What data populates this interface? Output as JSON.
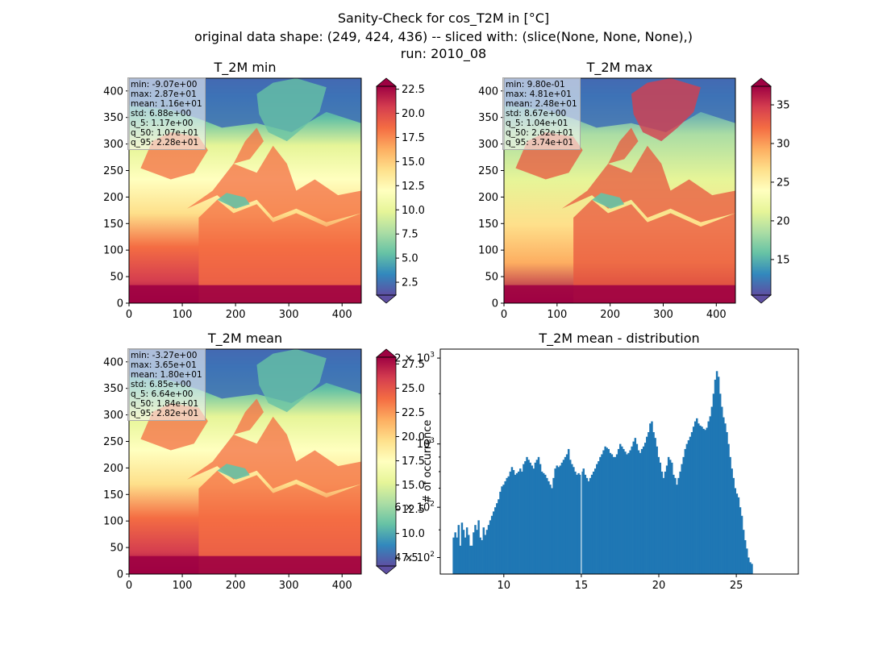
{
  "suptitle": {
    "line1": "Sanity-Check for cos_T2M in [°C]",
    "line2": "original data shape: (249, 424, 436) -- sliced with: (slice(None, None, None),)",
    "line3": "run: 2010_08"
  },
  "chart_data": [
    {
      "type": "heatmap",
      "title": "T_2M min",
      "xticks": [
        0,
        100,
        200,
        300,
        400
      ],
      "yticks": [
        0,
        50,
        100,
        150,
        200,
        250,
        300,
        350,
        400
      ],
      "xlim": [
        0,
        436
      ],
      "ylim": [
        0,
        424
      ],
      "colormap": "Spectral_r",
      "colorbar": {
        "ticks": [
          "2.5",
          "5.0",
          "7.5",
          "10.0",
          "12.5",
          "15.0",
          "17.5",
          "20.0",
          "22.5"
        ],
        "range": [
          1.17,
          22.8
        ],
        "extend": "both"
      },
      "stats": [
        "min: -9.07e+00",
        "max: 2.87e+01",
        "mean: 1.16e+01",
        "std: 6.88e+00",
        "q_5: 1.17e+00",
        "q_50: 1.07e+01",
        "q_95: 2.28e+01"
      ]
    },
    {
      "type": "heatmap",
      "title": "T_2M max",
      "xticks": [
        0,
        100,
        200,
        300,
        400
      ],
      "yticks": [
        0,
        50,
        100,
        150,
        200,
        250,
        300,
        350,
        400
      ],
      "xlim": [
        0,
        436
      ],
      "ylim": [
        0,
        424
      ],
      "colormap": "Spectral_r",
      "colorbar": {
        "ticks": [
          "15",
          "20",
          "25",
          "30",
          "35"
        ],
        "range": [
          10.4,
          37.4
        ],
        "extend": "both"
      },
      "stats": [
        "min: 9.80e-01",
        "max: 4.81e+01",
        "mean: 2.48e+01",
        "std: 8.67e+00",
        "q_5: 1.04e+01",
        "q_50: 2.62e+01",
        "q_95: 3.74e+01"
      ]
    },
    {
      "type": "heatmap",
      "title": "T_2M mean",
      "xticks": [
        0,
        100,
        200,
        300,
        400
      ],
      "yticks": [
        0,
        50,
        100,
        150,
        200,
        250,
        300,
        350,
        400
      ],
      "xlim": [
        0,
        436
      ],
      "ylim": [
        0,
        424
      ],
      "colormap": "Spectral_r",
      "colorbar": {
        "ticks": [
          "7.5",
          "10.0",
          "12.5",
          "15.0",
          "17.5",
          "20.0",
          "22.5",
          "25.0",
          "27.5"
        ],
        "range": [
          6.64,
          28.2
        ],
        "extend": "both"
      },
      "stats": [
        "min: -3.27e+00",
        "max: 3.65e+01",
        "mean: 1.80e+01",
        "std: 6.85e+00",
        "q_5: 6.64e+00",
        "q_50: 1.84e+01",
        "q_95: 2.82e+01"
      ]
    },
    {
      "type": "bar",
      "title": "T_2M mean - distribution",
      "ylabel": "# of occurrence",
      "yscale": "log",
      "xlim": [
        5.9,
        29.0
      ],
      "ylim": [
        350,
        2150
      ],
      "xticks": [
        10,
        15,
        20,
        25
      ],
      "yticks": [
        {
          "value": 400,
          "label": "4 × 10²"
        },
        {
          "value": 600,
          "label": "6 × 10²"
        },
        {
          "value": 1000,
          "label": "10³"
        },
        {
          "value": 2000,
          "label": "2 × 10³"
        }
      ],
      "bin_start": 6.7,
      "bin_width": 0.1075,
      "values": [
        470,
        490,
        470,
        520,
        440,
        530,
        500,
        470,
        510,
        480,
        440,
        440,
        490,
        520,
        500,
        540,
        470,
        460,
        510,
        480,
        500,
        520,
        540,
        560,
        580,
        600,
        620,
        640,
        680,
        710,
        720,
        740,
        760,
        770,
        800,
        830,
        810,
        780,
        790,
        800,
        820,
        800,
        850,
        870,
        900,
        880,
        860,
        840,
        820,
        860,
        880,
        900,
        850,
        800,
        790,
        780,
        760,
        740,
        720,
        700,
        760,
        820,
        840,
        830,
        840,
        860,
        880,
        900,
        920,
        960,
        880,
        850,
        830,
        800,
        780,
        790,
        780,
        800,
        820,
        780,
        760,
        740,
        760,
        780,
        800,
        820,
        850,
        870,
        900,
        920,
        950,
        980,
        970,
        960,
        930,
        920,
        900,
        900,
        920,
        960,
        1000,
        980,
        960,
        940,
        920,
        930,
        950,
        980,
        1020,
        1050,
        1000,
        950,
        930,
        960,
        980,
        1010,
        1060,
        1100,
        1180,
        1200,
        1100,
        1050,
        980,
        900,
        860,
        800,
        760,
        800,
        840,
        900,
        880,
        860,
        780,
        760,
        720,
        760,
        800,
        850,
        900,
        960,
        1000,
        1030,
        1060,
        1100,
        1150,
        1200,
        1230,
        1180,
        1160,
        1150,
        1130,
        1120,
        1140,
        1200,
        1250,
        1350,
        1500,
        1680,
        1800,
        1720,
        1500,
        1350,
        1240,
        1180,
        1100,
        1000,
        900,
        820,
        760,
        700,
        670,
        650,
        600,
        560,
        500,
        460,
        430,
        400,
        385,
        380
      ]
    }
  ]
}
